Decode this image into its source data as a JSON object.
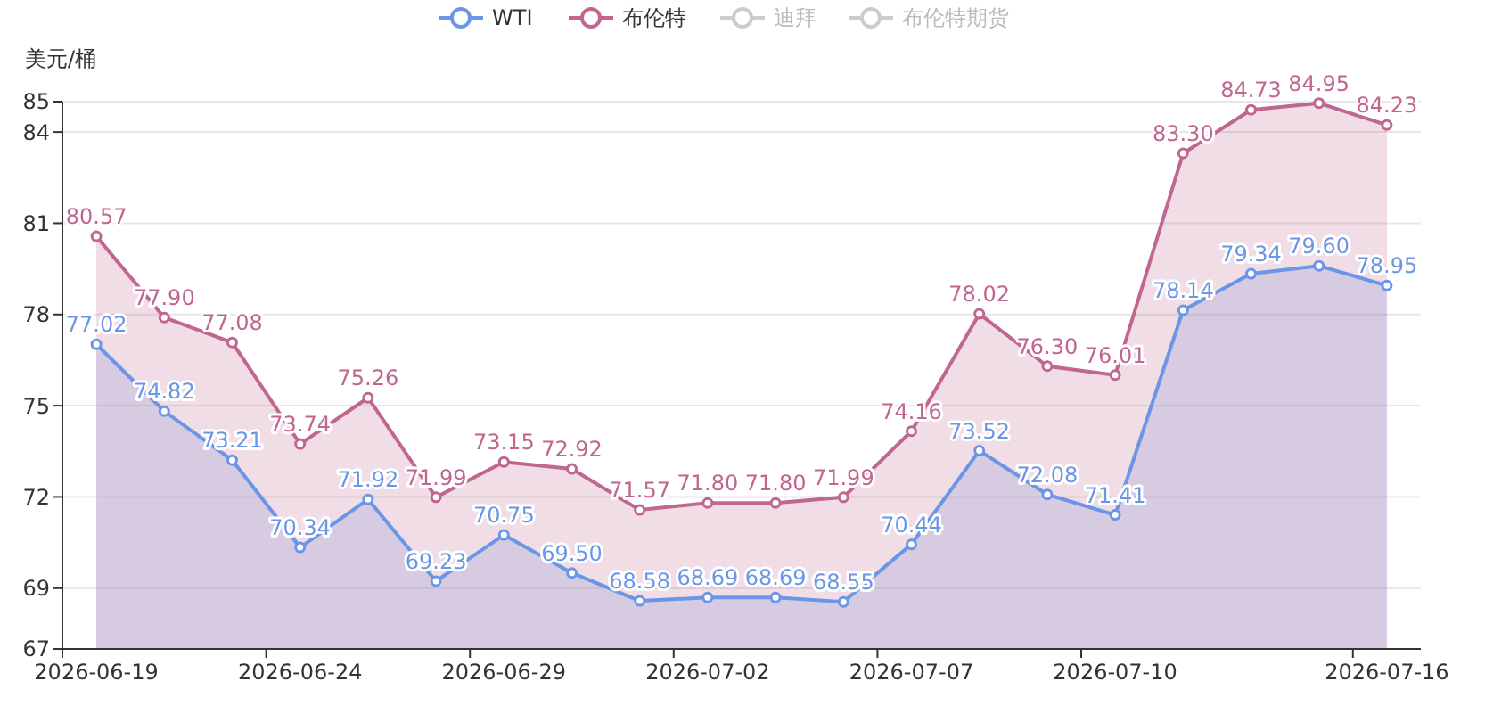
{
  "chart_data": {
    "type": "area",
    "ylabel": "美元/桶",
    "categories": [
      "2026-06-19",
      null,
      null,
      "2026-06-24",
      null,
      null,
      "2026-06-29",
      null,
      null,
      "2026-07-02",
      null,
      null,
      "2026-07-07",
      null,
      null,
      "2026-07-10",
      null,
      null,
      null,
      "2026-07-16"
    ],
    "series": [
      {
        "name": "WTI",
        "color": "#6b96e8",
        "values": [
          77.02,
          74.82,
          73.21,
          70.34,
          71.92,
          69.23,
          70.75,
          69.5,
          68.58,
          68.69,
          68.69,
          68.55,
          70.44,
          73.52,
          72.08,
          71.41,
          78.14,
          79.34,
          79.6,
          78.95
        ],
        "value_labels": [
          "77.02",
          "74.82",
          "73.21",
          "70.34",
          "71.92",
          "69.23",
          "70.75",
          "69.50",
          "68.58",
          "68.69",
          "68.69",
          "68.55",
          "70.44",
          "73.52",
          "72.08",
          "71.41",
          "78.14",
          "79.34",
          "79.60",
          "78.95"
        ]
      },
      {
        "name": "布伦特",
        "color": "#c0668f",
        "values": [
          80.57,
          77.9,
          77.08,
          73.74,
          75.26,
          71.99,
          73.15,
          72.92,
          71.57,
          71.8,
          71.8,
          71.99,
          74.16,
          78.02,
          76.3,
          76.01,
          83.3,
          84.73,
          84.95,
          84.23
        ],
        "value_labels": [
          "80.57",
          "77.90",
          "77.08",
          "73.74",
          "75.26",
          "71.99",
          "73.15",
          "72.92",
          "71.57",
          "71.80",
          "71.80",
          "71.99",
          "74.16",
          "78.02",
          "76.30",
          "76.01",
          "83.30",
          "84.73",
          "84.95",
          "84.23"
        ]
      },
      {
        "name": "迪拜",
        "color": "#cccccc",
        "values": [
          null,
          null,
          null,
          null,
          null,
          null,
          null,
          null,
          null,
          null,
          null,
          null,
          null,
          null,
          null,
          null,
          null,
          null,
          null,
          null
        ]
      },
      {
        "name": "布伦特期货",
        "color": "#cccccc",
        "values": [
          null,
          null,
          null,
          null,
          null,
          null,
          null,
          null,
          null,
          null,
          null,
          null,
          null,
          null,
          null,
          null,
          null,
          null,
          null,
          null
        ]
      }
    ],
    "ylim": [
      67,
      85
    ],
    "yticks": [
      67,
      69,
      72,
      75,
      78,
      81,
      84,
      85
    ],
    "grid": "y",
    "legend": "top",
    "marker": "circle"
  }
}
